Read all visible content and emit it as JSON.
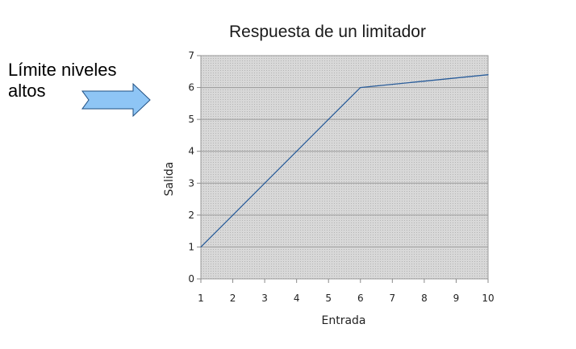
{
  "annotation": {
    "line1": "Límite niveles",
    "line2": "altos"
  },
  "colors": {
    "plot_background": "#cfcfcf",
    "gridline": "#9a9a9a",
    "series_line": "#2a5d9a",
    "arrow_fill": "#8ec5f5",
    "arrow_stroke": "#1f4f82"
  },
  "icons": {
    "annotation_arrow": "right-arrow-icon"
  },
  "chart_data": {
    "type": "line",
    "title": "Respuesta de un limitador",
    "xlabel": "Entrada",
    "ylabel": "Salida",
    "xlim": [
      1,
      10
    ],
    "ylim": [
      0,
      7
    ],
    "x_ticks": [
      "1",
      "2",
      "3",
      "4",
      "5",
      "6",
      "7",
      "8",
      "9",
      "10"
    ],
    "y_ticks": [
      "0",
      "1",
      "2",
      "3",
      "4",
      "5",
      "6",
      "7"
    ],
    "grid": "horizontal",
    "legend": "none",
    "series": [
      {
        "x": [
          1,
          2,
          3,
          4,
          5,
          6,
          7,
          8,
          9,
          10
        ],
        "y": [
          1,
          2,
          3,
          4,
          5,
          6,
          6.1,
          6.2,
          6.3,
          6.4
        ]
      }
    ]
  }
}
